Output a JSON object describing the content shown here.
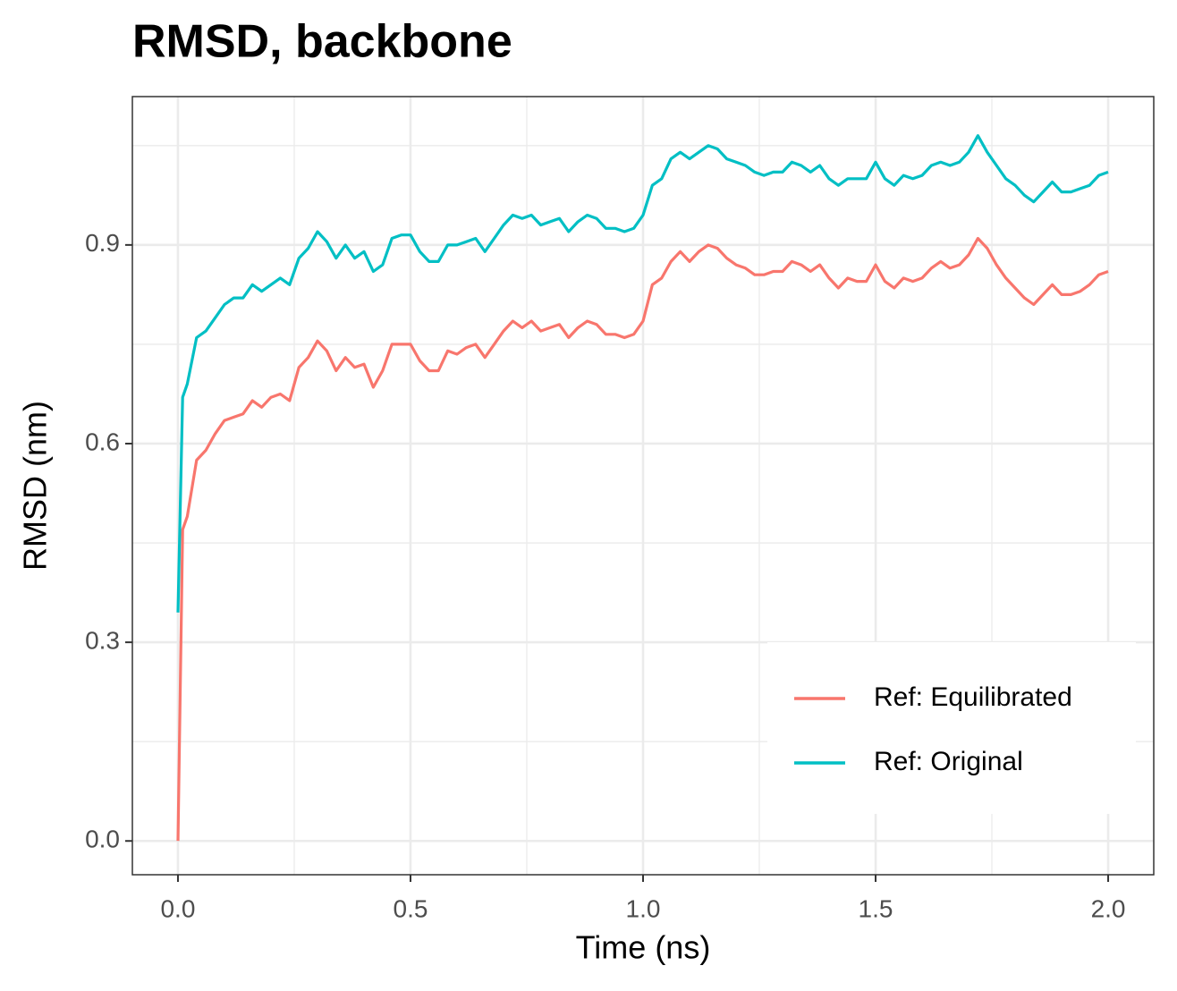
{
  "chart_data": {
    "type": "line",
    "title": "RMSD, backbone",
    "x_label": "Time (ns)",
    "y_label": "RMSD (nm)",
    "x": [
      0,
      0.01,
      0.02,
      0.04,
      0.06,
      0.08,
      0.1,
      0.12,
      0.14,
      0.16,
      0.18,
      0.2,
      0.22,
      0.24,
      0.26,
      0.28,
      0.3,
      0.32,
      0.34,
      0.36,
      0.38,
      0.4,
      0.42,
      0.44,
      0.46,
      0.48,
      0.5,
      0.52,
      0.54,
      0.56,
      0.58,
      0.6,
      0.62,
      0.64,
      0.66,
      0.68,
      0.7,
      0.72,
      0.74,
      0.76,
      0.78,
      0.8,
      0.82,
      0.84,
      0.86,
      0.88,
      0.9,
      0.92,
      0.94,
      0.96,
      0.98,
      1.0,
      1.02,
      1.04,
      1.06,
      1.08,
      1.1,
      1.12,
      1.14,
      1.16,
      1.18,
      1.2,
      1.22,
      1.24,
      1.26,
      1.28,
      1.3,
      1.32,
      1.34,
      1.36,
      1.38,
      1.4,
      1.42,
      1.44,
      1.46,
      1.48,
      1.5,
      1.52,
      1.54,
      1.56,
      1.58,
      1.6,
      1.62,
      1.64,
      1.66,
      1.68,
      1.7,
      1.72,
      1.74,
      1.76,
      1.78,
      1.8,
      1.82,
      1.84,
      1.86,
      1.88,
      1.9,
      1.92,
      1.94,
      1.96,
      1.98,
      2.0
    ],
    "series": [
      {
        "name": "Ref: Equilibrated",
        "color": "#f8766d",
        "values": [
          0,
          0.47,
          0.49,
          0.575,
          0.59,
          0.615,
          0.635,
          0.64,
          0.645,
          0.665,
          0.655,
          0.67,
          0.675,
          0.665,
          0.715,
          0.73,
          0.755,
          0.74,
          0.71,
          0.73,
          0.715,
          0.72,
          0.685,
          0.71,
          0.75,
          0.75,
          0.75,
          0.725,
          0.71,
          0.71,
          0.74,
          0.735,
          0.745,
          0.75,
          0.73,
          0.75,
          0.77,
          0.785,
          0.775,
          0.785,
          0.77,
          0.775,
          0.78,
          0.76,
          0.775,
          0.785,
          0.78,
          0.765,
          0.765,
          0.76,
          0.765,
          0.785,
          0.84,
          0.85,
          0.875,
          0.89,
          0.875,
          0.89,
          0.9,
          0.895,
          0.88,
          0.87,
          0.865,
          0.855,
          0.855,
          0.86,
          0.86,
          0.875,
          0.87,
          0.86,
          0.87,
          0.85,
          0.835,
          0.85,
          0.845,
          0.845,
          0.87,
          0.845,
          0.835,
          0.85,
          0.845,
          0.85,
          0.865,
          0.875,
          0.865,
          0.87,
          0.885,
          0.91,
          0.895,
          0.87,
          0.85,
          0.835,
          0.82,
          0.81,
          0.825,
          0.84,
          0.825,
          0.825,
          0.83,
          0.84,
          0.855,
          0.86
        ]
      },
      {
        "name": "Ref: Original",
        "color": "#00bfc4",
        "values": [
          0.345,
          0.67,
          0.69,
          0.76,
          0.77,
          0.79,
          0.81,
          0.82,
          0.82,
          0.84,
          0.83,
          0.84,
          0.85,
          0.84,
          0.88,
          0.895,
          0.92,
          0.905,
          0.88,
          0.9,
          0.88,
          0.89,
          0.86,
          0.87,
          0.91,
          0.915,
          0.915,
          0.89,
          0.875,
          0.875,
          0.9,
          0.9,
          0.905,
          0.91,
          0.89,
          0.91,
          0.93,
          0.945,
          0.94,
          0.945,
          0.93,
          0.935,
          0.94,
          0.92,
          0.935,
          0.945,
          0.94,
          0.925,
          0.925,
          0.92,
          0.925,
          0.945,
          0.99,
          1.0,
          1.03,
          1.04,
          1.03,
          1.04,
          1.05,
          1.045,
          1.03,
          1.025,
          1.02,
          1.01,
          1.005,
          1.01,
          1.01,
          1.025,
          1.02,
          1.01,
          1.02,
          1.0,
          0.99,
          1.0,
          1.0,
          1.0,
          1.025,
          1.0,
          0.99,
          1.005,
          1.0,
          1.005,
          1.02,
          1.025,
          1.02,
          1.025,
          1.04,
          1.065,
          1.04,
          1.02,
          1.0,
          0.99,
          0.975,
          0.965,
          0.98,
          0.995,
          0.98,
          0.98,
          0.985,
          0.99,
          1.005,
          1.01
        ]
      }
    ],
    "xlim": [
      -0.098,
      2.098
    ],
    "ylim": [
      -0.051,
      1.124
    ],
    "xticks": [
      {
        "value": 0,
        "label": "0.0"
      },
      0.5,
      {
        "value": 1,
        "label": "1.0"
      },
      1.5,
      {
        "value": 2,
        "label": "2.0"
      }
    ],
    "yticks": [
      {
        "value": 0,
        "label": "0.0"
      },
      0.3,
      0.6,
      0.9
    ],
    "grid": true,
    "legend": "bottom-right"
  }
}
